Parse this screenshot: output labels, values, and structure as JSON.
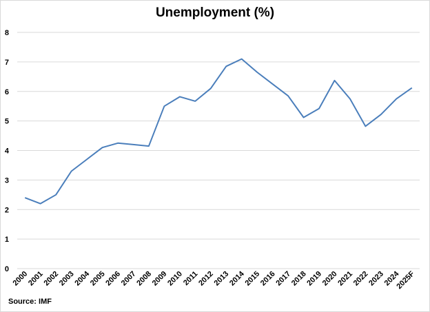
{
  "chart_data": {
    "type": "line",
    "title": "Unemployment (%)",
    "xlabel": "",
    "ylabel": "",
    "ylim": [
      0,
      8
    ],
    "yticks": [
      "0",
      "1",
      "2",
      "3",
      "4",
      "5",
      "6",
      "7",
      "8"
    ],
    "grid": true,
    "legend": "none",
    "categories": [
      "2000",
      "2001",
      "2002",
      "2003",
      "2004",
      "2005",
      "2006",
      "2007",
      "2008",
      "2009",
      "2010",
      "2011",
      "2012",
      "2013",
      "2014",
      "2015",
      "2016",
      "2017",
      "2018",
      "2019",
      "2020",
      "2021",
      "2022",
      "2023",
      "2024",
      "2025F"
    ],
    "series": [
      {
        "values": [
          2.4,
          2.2,
          2.5,
          3.3,
          3.7,
          4.1,
          4.25,
          4.2,
          4.15,
          5.5,
          5.82,
          5.67,
          6.1,
          6.85,
          7.1,
          6.65,
          6.25,
          5.85,
          5.12,
          5.42,
          6.37,
          5.75,
          4.82,
          5.22,
          5.75,
          6.12
        ]
      }
    ],
    "line_color": "#4a7ebb",
    "grid_color": "#d9d9d9",
    "source": "Source: IMF"
  }
}
